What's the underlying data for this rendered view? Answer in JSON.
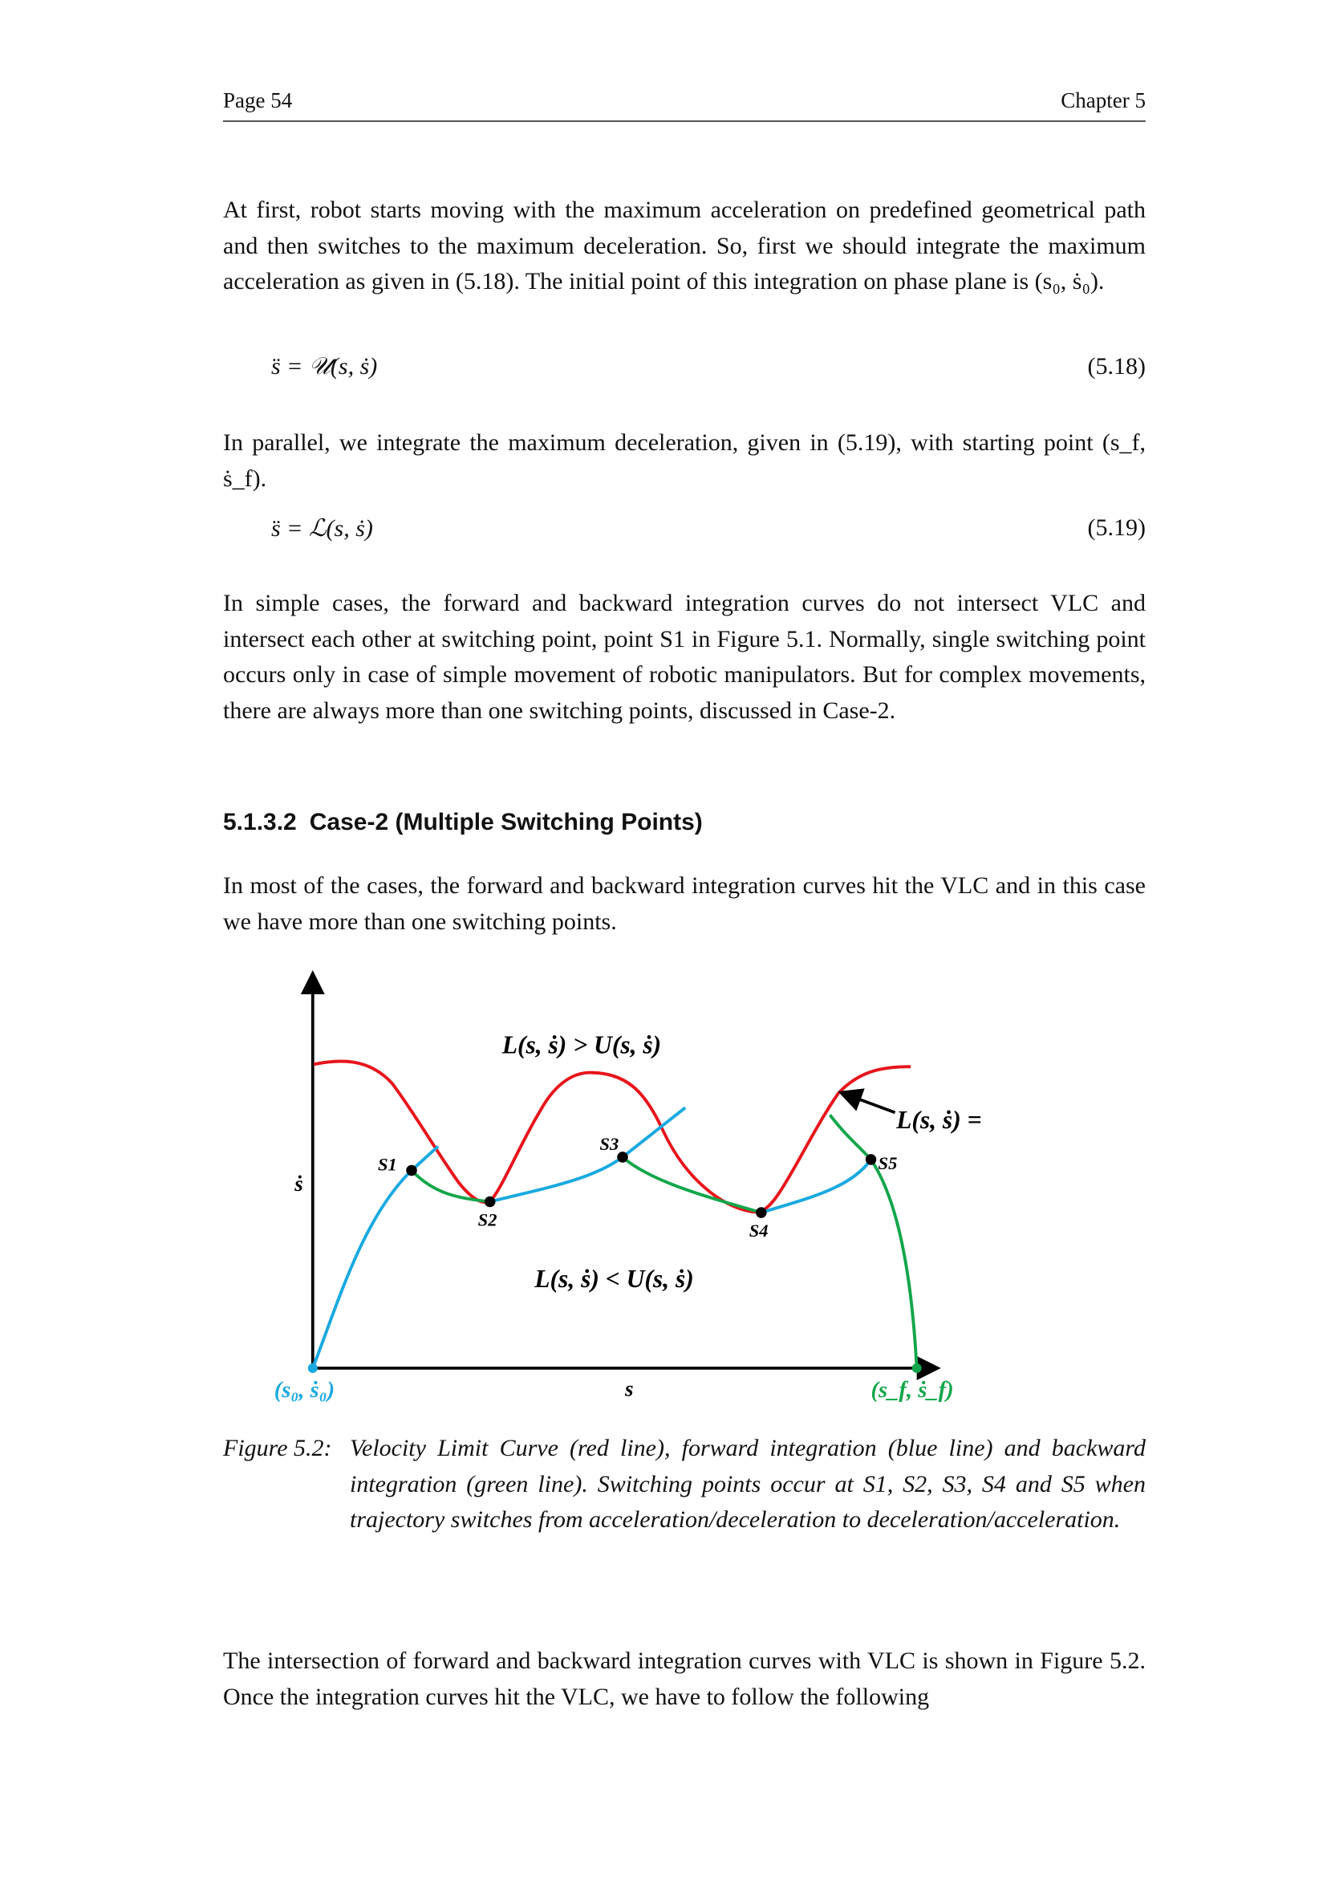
{
  "header": {
    "page": "Page 54",
    "chapter": "Chapter 5"
  },
  "paragraphs": {
    "p1": "At first, robot starts moving with the maximum acceleration on predefined geometrical path and then switches to the maximum deceleration. So, first we should integrate the maximum acceleration as given in (5.18). The initial point of this integration on phase plane is (s₀, ṡ₀).",
    "p2": "In parallel, we integrate the maximum deceleration, given in (5.19), with starting point (s_f, ṡ_f).",
    "p3": "In simple cases, the forward and backward integration curves do not intersect VLC and intersect each other at switching point, point S1 in Figure 5.1. Normally, single switching point occurs only in case of simple movement of robotic manipulators. But for complex movements, there are always more than one switching points, discussed in Case-2.",
    "p4": "In most of the cases, the forward and backward integration curves hit the VLC and in this case we have more than one switching points.",
    "p5": "The intersection of forward and backward integration curves with VLC is shown in Figure 5.2. Once the integration curves hit the VLC, we have to follow the following"
  },
  "equations": [
    {
      "expr": "s̈ = 𝒰(s, ṡ)",
      "number": "(5.18)"
    },
    {
      "expr": "s̈ = ℒ(s, ṡ)",
      "number": "(5.19)"
    }
  ],
  "section": {
    "number": "5.1.3.2",
    "title": "Case-2 (Multiple Switching Points)"
  },
  "figure": {
    "caption_label": "Figure 5.2:",
    "caption_text": "Velocity Limit Curve (red line), forward integration (blue line) and backward integration (green line). Switching points occur at S1, S2, S3, S4 and S5 when trajectory switches from acceleration/deceleration to deceleration/acceleration.",
    "region_above": "L(s, ṡ) > U(s, ṡ)",
    "region_below": "L(s, ṡ) < U(s, ṡ)",
    "vlc_label": "L(s, ṡ) = U(s, ṡ)",
    "x_axis_label": "s",
    "y_axis_label": "ṡ",
    "start_label": "(s₀, ṡ₀)",
    "end_label": "(s_f, ṡ_f)",
    "switching_points": [
      "S1",
      "S2",
      "S3",
      "S4",
      "S5"
    ],
    "colors": {
      "vlc": "#e8141b",
      "forward": "#19a9e1",
      "backward": "#12a64a"
    }
  }
}
